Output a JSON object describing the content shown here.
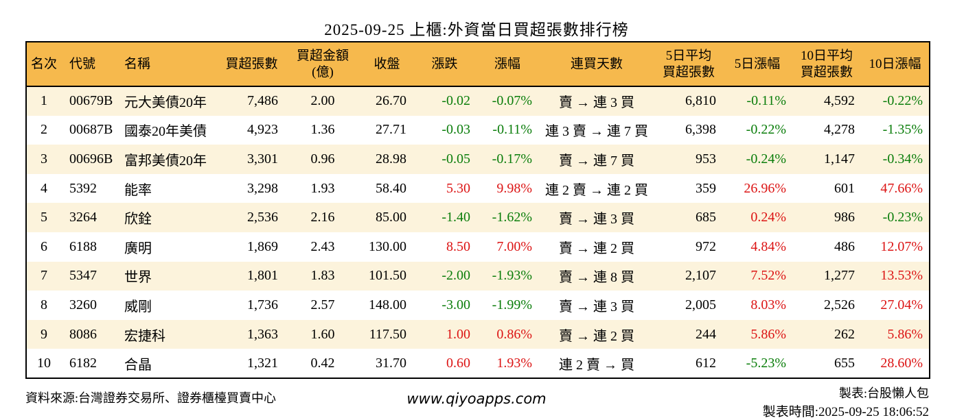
{
  "title": "2025-09-25 上櫃:外資當日買超張數排行榜",
  "colors": {
    "header_bg": "#F6B94D",
    "row_alt_bg": "#FCF3DC",
    "up_red": "#DC1414",
    "down_green": "#0A7D0A",
    "border": "#000000"
  },
  "table": {
    "headers": [
      "名次",
      "代號",
      "名稱",
      "買超張數",
      "買超金額\n(億)",
      "收盤",
      "漲跌",
      "漲幅",
      "連買天數",
      "5日平均\n買超張數",
      "5日漲幅",
      "10日平均\n買超張數",
      "10日漲幅"
    ],
    "columns": [
      {
        "key": "rank",
        "align": "center"
      },
      {
        "key": "code",
        "align": "left"
      },
      {
        "key": "name",
        "align": "left"
      },
      {
        "key": "net_buy",
        "align": "right"
      },
      {
        "key": "amount",
        "align": "center"
      },
      {
        "key": "close",
        "align": "right"
      },
      {
        "key": "change",
        "align": "right"
      },
      {
        "key": "change_pct",
        "align": "right"
      },
      {
        "key": "streak",
        "align": "center"
      },
      {
        "key": "avg5",
        "align": "right"
      },
      {
        "key": "pct5",
        "align": "right"
      },
      {
        "key": "avg10",
        "align": "right"
      },
      {
        "key": "pct10",
        "align": "right"
      }
    ],
    "rows": [
      {
        "rank": "1",
        "code": "00679B",
        "name": "元大美債20年",
        "net_buy": "7,486",
        "amount": "2.00",
        "close": "26.70",
        "change": "-0.02",
        "change_color": "green",
        "change_pct": "-0.07%",
        "change_pct_color": "green",
        "streak": "賣 → 連 3 買",
        "avg5": "6,810",
        "pct5": "-0.11%",
        "pct5_color": "green",
        "avg10": "4,592",
        "pct10": "-0.22%",
        "pct10_color": "green"
      },
      {
        "rank": "2",
        "code": "00687B",
        "name": "國泰20年美債",
        "net_buy": "4,923",
        "amount": "1.36",
        "close": "27.71",
        "change": "-0.03",
        "change_color": "green",
        "change_pct": "-0.11%",
        "change_pct_color": "green",
        "streak": "連 3 賣 → 連 7 買",
        "avg5": "6,398",
        "pct5": "-0.22%",
        "pct5_color": "green",
        "avg10": "4,278",
        "pct10": "-1.35%",
        "pct10_color": "green"
      },
      {
        "rank": "3",
        "code": "00696B",
        "name": "富邦美債20年",
        "net_buy": "3,301",
        "amount": "0.96",
        "close": "28.98",
        "change": "-0.05",
        "change_color": "green",
        "change_pct": "-0.17%",
        "change_pct_color": "green",
        "streak": "賣 → 連 7 買",
        "avg5": "953",
        "pct5": "-0.24%",
        "pct5_color": "green",
        "avg10": "1,147",
        "pct10": "-0.34%",
        "pct10_color": "green"
      },
      {
        "rank": "4",
        "code": "5392",
        "name": "能率",
        "net_buy": "3,298",
        "amount": "1.93",
        "close": "58.40",
        "change": "5.30",
        "change_color": "red",
        "change_pct": "9.98%",
        "change_pct_color": "red",
        "streak": "連 2 賣 → 連 2 買",
        "avg5": "359",
        "pct5": "26.96%",
        "pct5_color": "red",
        "avg10": "601",
        "pct10": "47.66%",
        "pct10_color": "red"
      },
      {
        "rank": "5",
        "code": "3264",
        "name": "欣銓",
        "net_buy": "2,536",
        "amount": "2.16",
        "close": "85.00",
        "change": "-1.40",
        "change_color": "green",
        "change_pct": "-1.62%",
        "change_pct_color": "green",
        "streak": "賣 → 連 3 買",
        "avg5": "685",
        "pct5": "0.24%",
        "pct5_color": "red",
        "avg10": "986",
        "pct10": "-0.23%",
        "pct10_color": "green"
      },
      {
        "rank": "6",
        "code": "6188",
        "name": "廣明",
        "net_buy": "1,869",
        "amount": "2.43",
        "close": "130.00",
        "change": "8.50",
        "change_color": "red",
        "change_pct": "7.00%",
        "change_pct_color": "red",
        "streak": "賣 → 連 2 買",
        "avg5": "972",
        "pct5": "4.84%",
        "pct5_color": "red",
        "avg10": "486",
        "pct10": "12.07%",
        "pct10_color": "red"
      },
      {
        "rank": "7",
        "code": "5347",
        "name": "世界",
        "net_buy": "1,801",
        "amount": "1.83",
        "close": "101.50",
        "change": "-2.00",
        "change_color": "green",
        "change_pct": "-1.93%",
        "change_pct_color": "green",
        "streak": "賣 → 連 8 買",
        "avg5": "2,107",
        "pct5": "7.52%",
        "pct5_color": "red",
        "avg10": "1,277",
        "pct10": "13.53%",
        "pct10_color": "red"
      },
      {
        "rank": "8",
        "code": "3260",
        "name": "威剛",
        "net_buy": "1,736",
        "amount": "2.57",
        "close": "148.00",
        "change": "-3.00",
        "change_color": "green",
        "change_pct": "-1.99%",
        "change_pct_color": "green",
        "streak": "賣 → 連 3 買",
        "avg5": "2,005",
        "pct5": "8.03%",
        "pct5_color": "red",
        "avg10": "2,526",
        "pct10": "27.04%",
        "pct10_color": "red"
      },
      {
        "rank": "9",
        "code": "8086",
        "name": "宏捷科",
        "net_buy": "1,363",
        "amount": "1.60",
        "close": "117.50",
        "change": "1.00",
        "change_color": "red",
        "change_pct": "0.86%",
        "change_pct_color": "red",
        "streak": "賣 → 連 2 買",
        "avg5": "244",
        "pct5": "5.86%",
        "pct5_color": "red",
        "avg10": "262",
        "pct10": "5.86%",
        "pct10_color": "red"
      },
      {
        "rank": "10",
        "code": "6182",
        "name": "合晶",
        "net_buy": "1,321",
        "amount": "0.42",
        "close": "31.70",
        "change": "0.60",
        "change_color": "red",
        "change_pct": "1.93%",
        "change_pct_color": "red",
        "streak": "連 2 賣 → 買",
        "avg5": "612",
        "pct5": "-5.23%",
        "pct5_color": "green",
        "avg10": "655",
        "pct10": "28.60%",
        "pct10_color": "red"
      }
    ]
  },
  "footer": {
    "source": "資料來源:台灣證券交易所、證券櫃檯買賣中心",
    "site": "www.qiyoapps.com",
    "author": "製表:台股懶人包",
    "timestamp": "製表時間:2025-09-25 18:06:52"
  }
}
